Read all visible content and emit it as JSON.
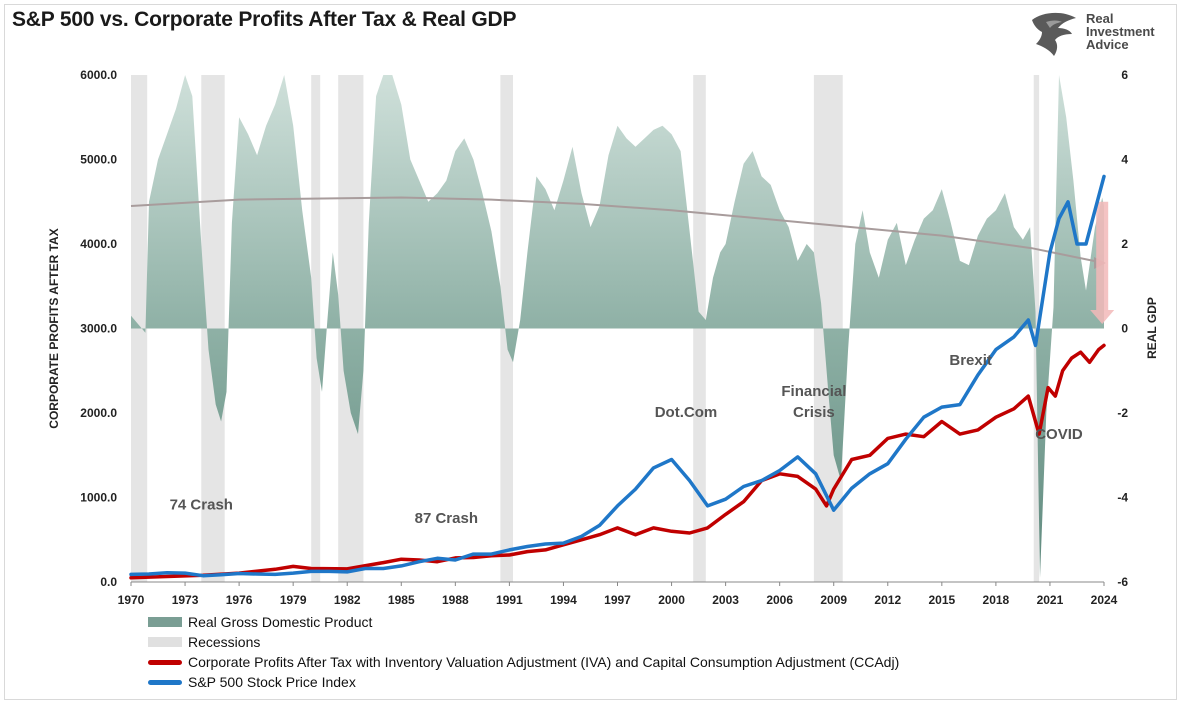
{
  "title": "S&P 500 vs. Corporate Profits After Tax & Real GDP",
  "logo": {
    "line1": "Real",
    "line2": "Investment",
    "line3": "Advice"
  },
  "chart_data": {
    "type": "line",
    "title": "S&P 500 vs. Corporate Profits After Tax & Real GDP",
    "ylabel": "CORPORATE PROFITS AFTER TAX",
    "y2label": "REAL GDP",
    "ylim": [
      0,
      6000
    ],
    "y2lim": [
      -6,
      6
    ],
    "xlim": [
      1970,
      2024
    ],
    "y_ticks": [
      "0.0",
      "1000.0",
      "2000.0",
      "3000.0",
      "4000.0",
      "5000.0",
      "6000.0"
    ],
    "y2_ticks": [
      "-6",
      "-4",
      "-2",
      "0",
      "2",
      "4",
      "6"
    ],
    "x_ticks": [
      "1970",
      "1973",
      "1976",
      "1979",
      "1982",
      "1985",
      "1988",
      "1991",
      "1994",
      "1997",
      "2000",
      "2003",
      "2006",
      "2009",
      "2012",
      "2015",
      "2018",
      "2021",
      "2024"
    ],
    "recessions": [
      [
        1970.0,
        1970.9
      ],
      [
        1973.9,
        1975.2
      ],
      [
        1980.0,
        1980.5
      ],
      [
        1981.5,
        1982.9
      ],
      [
        1990.5,
        1991.2
      ],
      [
        2001.2,
        2001.9
      ],
      [
        2007.9,
        2009.5
      ],
      [
        2020.1,
        2020.4
      ]
    ],
    "gdp": [
      [
        1970.0,
        0.3
      ],
      [
        1970.4,
        0.1
      ],
      [
        1970.8,
        -0.1
      ],
      [
        1971.0,
        3.0
      ],
      [
        1971.5,
        4.0
      ],
      [
        1972.0,
        4.6
      ],
      [
        1972.5,
        5.2
      ],
      [
        1973.0,
        6.5
      ],
      [
        1973.4,
        5.5
      ],
      [
        1973.9,
        2.0
      ],
      [
        1974.3,
        -0.5
      ],
      [
        1974.7,
        -1.8
      ],
      [
        1975.0,
        -2.2
      ],
      [
        1975.3,
        -1.5
      ],
      [
        1975.6,
        2.5
      ],
      [
        1976.0,
        5.0
      ],
      [
        1976.5,
        4.6
      ],
      [
        1977.0,
        4.1
      ],
      [
        1977.5,
        4.8
      ],
      [
        1978.0,
        5.3
      ],
      [
        1978.5,
        6.4
      ],
      [
        1979.0,
        4.8
      ],
      [
        1979.5,
        2.8
      ],
      [
        1980.0,
        1.2
      ],
      [
        1980.3,
        -0.7
      ],
      [
        1980.6,
        -1.5
      ],
      [
        1980.9,
        0.2
      ],
      [
        1981.2,
        1.8
      ],
      [
        1981.5,
        0.8
      ],
      [
        1981.8,
        -1.0
      ],
      [
        1982.2,
        -2.0
      ],
      [
        1982.6,
        -2.5
      ],
      [
        1982.9,
        -1.0
      ],
      [
        1983.2,
        2.5
      ],
      [
        1983.6,
        5.5
      ],
      [
        1984.0,
        7.5
      ],
      [
        1984.5,
        7.0
      ],
      [
        1985.0,
        5.3
      ],
      [
        1985.5,
        4.0
      ],
      [
        1986.0,
        3.5
      ],
      [
        1986.5,
        3.0
      ],
      [
        1987.0,
        3.2
      ],
      [
        1987.5,
        3.5
      ],
      [
        1988.0,
        4.2
      ],
      [
        1988.5,
        4.5
      ],
      [
        1989.0,
        4.0
      ],
      [
        1989.5,
        3.2
      ],
      [
        1990.0,
        2.3
      ],
      [
        1990.5,
        1.0
      ],
      [
        1990.9,
        -0.5
      ],
      [
        1991.2,
        -0.8
      ],
      [
        1991.6,
        0.2
      ],
      [
        1992.0,
        1.8
      ],
      [
        1992.5,
        3.6
      ],
      [
        1993.0,
        3.3
      ],
      [
        1993.5,
        2.8
      ],
      [
        1994.0,
        3.5
      ],
      [
        1994.5,
        4.3
      ],
      [
        1995.0,
        3.2
      ],
      [
        1995.5,
        2.4
      ],
      [
        1996.0,
        2.9
      ],
      [
        1996.5,
        4.1
      ],
      [
        1997.0,
        4.8
      ],
      [
        1997.5,
        4.5
      ],
      [
        1998.0,
        4.3
      ],
      [
        1998.5,
        4.5
      ],
      [
        1999.0,
        4.7
      ],
      [
        1999.5,
        4.8
      ],
      [
        2000.0,
        4.6
      ],
      [
        2000.5,
        4.2
      ],
      [
        2001.0,
        2.3
      ],
      [
        2001.5,
        0.4
      ],
      [
        2001.9,
        0.2
      ],
      [
        2002.3,
        1.2
      ],
      [
        2002.7,
        1.8
      ],
      [
        2003.0,
        2.0
      ],
      [
        2003.5,
        3.0
      ],
      [
        2004.0,
        3.9
      ],
      [
        2004.5,
        4.2
      ],
      [
        2005.0,
        3.6
      ],
      [
        2005.5,
        3.4
      ],
      [
        2006.0,
        2.8
      ],
      [
        2006.5,
        2.4
      ],
      [
        2007.0,
        1.6
      ],
      [
        2007.5,
        2.0
      ],
      [
        2007.9,
        1.8
      ],
      [
        2008.3,
        0.6
      ],
      [
        2008.7,
        -1.5
      ],
      [
        2009.0,
        -3.0
      ],
      [
        2009.4,
        -3.6
      ],
      [
        2009.8,
        -0.5
      ],
      [
        2010.2,
        2.0
      ],
      [
        2010.6,
        2.8
      ],
      [
        2011.0,
        1.8
      ],
      [
        2011.5,
        1.2
      ],
      [
        2012.0,
        2.1
      ],
      [
        2012.5,
        2.5
      ],
      [
        2013.0,
        1.5
      ],
      [
        2013.5,
        2.1
      ],
      [
        2014.0,
        2.6
      ],
      [
        2014.5,
        2.8
      ],
      [
        2015.0,
        3.3
      ],
      [
        2015.5,
        2.5
      ],
      [
        2016.0,
        1.6
      ],
      [
        2016.5,
        1.5
      ],
      [
        2017.0,
        2.2
      ],
      [
        2017.5,
        2.6
      ],
      [
        2018.0,
        2.8
      ],
      [
        2018.5,
        3.2
      ],
      [
        2019.0,
        2.4
      ],
      [
        2019.5,
        2.1
      ],
      [
        2019.9,
        2.4
      ],
      [
        2020.2,
        0.4
      ],
      [
        2020.45,
        -5.9
      ],
      [
        2020.8,
        -2.0
      ],
      [
        2021.2,
        0.5
      ],
      [
        2021.5,
        6.4
      ],
      [
        2021.9,
        5.0
      ],
      [
        2022.3,
        3.5
      ],
      [
        2022.7,
        1.7
      ],
      [
        2023.0,
        0.9
      ],
      [
        2023.5,
        2.4
      ],
      [
        2023.9,
        3.1
      ],
      [
        2024.0,
        2.9
      ]
    ],
    "gdp_trend": [
      [
        1970,
        2.9
      ],
      [
        1976,
        3.05
      ],
      [
        1985,
        3.1
      ],
      [
        1990,
        3.05
      ],
      [
        1995,
        2.95
      ],
      [
        2000,
        2.8
      ],
      [
        2005,
        2.6
      ],
      [
        2010,
        2.4
      ],
      [
        2015,
        2.2
      ],
      [
        2020,
        1.9
      ],
      [
        2024,
        1.55
      ]
    ],
    "series": [
      {
        "name": "Corporate Profits After Tax with Inventory Valuation Adjustment (IVA) and Capital Consumption Adjustment (CCAdj)",
        "color": "#c00000",
        "points": [
          [
            1970,
            50
          ],
          [
            1972,
            65
          ],
          [
            1974,
            80
          ],
          [
            1976,
            105
          ],
          [
            1978,
            150
          ],
          [
            1979,
            185
          ],
          [
            1980,
            160
          ],
          [
            1982,
            155
          ],
          [
            1984,
            230
          ],
          [
            1985,
            270
          ],
          [
            1986,
            260
          ],
          [
            1987,
            240
          ],
          [
            1988,
            285
          ],
          [
            1989,
            290
          ],
          [
            1990,
            310
          ],
          [
            1991,
            320
          ],
          [
            1992,
            360
          ],
          [
            1993,
            380
          ],
          [
            1994,
            440
          ],
          [
            1995,
            500
          ],
          [
            1996,
            560
          ],
          [
            1997,
            640
          ],
          [
            1998,
            560
          ],
          [
            1999,
            640
          ],
          [
            2000,
            600
          ],
          [
            2001,
            580
          ],
          [
            2002,
            640
          ],
          [
            2003,
            800
          ],
          [
            2004,
            950
          ],
          [
            2005,
            1200
          ],
          [
            2006,
            1280
          ],
          [
            2007,
            1250
          ],
          [
            2008,
            1100
          ],
          [
            2008.6,
            900
          ],
          [
            2009,
            1100
          ],
          [
            2010,
            1450
          ],
          [
            2011,
            1500
          ],
          [
            2012,
            1700
          ],
          [
            2013,
            1750
          ],
          [
            2014,
            1720
          ],
          [
            2015,
            1900
          ],
          [
            2016,
            1750
          ],
          [
            2017,
            1800
          ],
          [
            2018,
            1950
          ],
          [
            2019,
            2050
          ],
          [
            2019.8,
            2200
          ],
          [
            2020.4,
            1750
          ],
          [
            2020.9,
            2300
          ],
          [
            2021.3,
            2200
          ],
          [
            2021.7,
            2500
          ],
          [
            2022.2,
            2650
          ],
          [
            2022.7,
            2720
          ],
          [
            2023.2,
            2600
          ],
          [
            2023.7,
            2750
          ],
          [
            2024,
            2800
          ]
        ]
      },
      {
        "name": "S&P 500 Stock Price Index",
        "color": "#1f77c8",
        "points": [
          [
            1970,
            90
          ],
          [
            1971,
            95
          ],
          [
            1972,
            110
          ],
          [
            1973,
            105
          ],
          [
            1974,
            75
          ],
          [
            1975,
            85
          ],
          [
            1976,
            100
          ],
          [
            1977,
            95
          ],
          [
            1978,
            90
          ],
          [
            1979,
            105
          ],
          [
            1980,
            125
          ],
          [
            1981,
            125
          ],
          [
            1982,
            120
          ],
          [
            1983,
            160
          ],
          [
            1984,
            160
          ],
          [
            1985,
            190
          ],
          [
            1986,
            240
          ],
          [
            1987,
            280
          ],
          [
            1988,
            260
          ],
          [
            1989,
            330
          ],
          [
            1990,
            330
          ],
          [
            1991,
            380
          ],
          [
            1992,
            420
          ],
          [
            1993,
            450
          ],
          [
            1994,
            460
          ],
          [
            1995,
            540
          ],
          [
            1996,
            670
          ],
          [
            1997,
            900
          ],
          [
            1998,
            1100
          ],
          [
            1999,
            1350
          ],
          [
            2000,
            1450
          ],
          [
            2001,
            1200
          ],
          [
            2002,
            900
          ],
          [
            2003,
            980
          ],
          [
            2004,
            1130
          ],
          [
            2005,
            1200
          ],
          [
            2006,
            1320
          ],
          [
            2007,
            1480
          ],
          [
            2008,
            1280
          ],
          [
            2009,
            850
          ],
          [
            2010,
            1110
          ],
          [
            2011,
            1280
          ],
          [
            2012,
            1400
          ],
          [
            2013,
            1690
          ],
          [
            2014,
            1950
          ],
          [
            2015,
            2070
          ],
          [
            2016,
            2100
          ],
          [
            2017,
            2450
          ],
          [
            2018,
            2750
          ],
          [
            2019,
            2900
          ],
          [
            2019.8,
            3100
          ],
          [
            2020.2,
            2800
          ],
          [
            2021,
            3900
          ],
          [
            2021.5,
            4300
          ],
          [
            2022,
            4500
          ],
          [
            2022.5,
            4000
          ],
          [
            2023,
            4000
          ],
          [
            2023.5,
            4400
          ],
          [
            2024,
            4800
          ]
        ]
      }
    ],
    "annotations": [
      "74 Crash",
      "87 Crash",
      "Dot.Com",
      "Financial",
      "Crisis",
      "Brexit",
      "COVID"
    ],
    "legend": {
      "gdp": "Real Gross Domestic Product",
      "recessions": "Recessions",
      "profits": "Corporate Profits After Tax with Inventory Valuation Adjustment (IVA) and Capital Consumption Adjustment (CCAdj)",
      "sp500": "S&P 500 Stock Price Index"
    },
    "colors": {
      "gdp": "#7a9e94",
      "recession": "#e0e0e0",
      "trend": "#a89c9c",
      "arrow": "#f2b8b8"
    }
  }
}
